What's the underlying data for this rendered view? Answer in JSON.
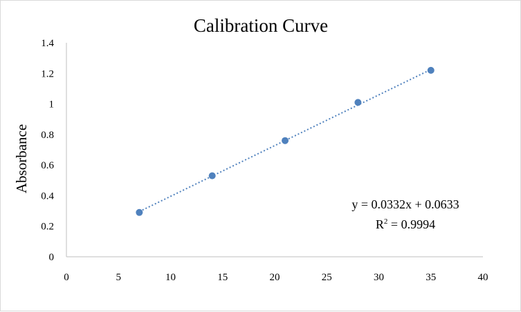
{
  "chart_data": {
    "type": "scatter",
    "title": "Calibration Curve",
    "xlabel": "",
    "ylabel": "Absorbance",
    "xlim": [
      0,
      40
    ],
    "ylim": [
      0,
      1.4
    ],
    "x_ticks": [
      "0",
      "5",
      "10",
      "15",
      "20",
      "25",
      "30",
      "35",
      "40"
    ],
    "y_ticks": [
      "0",
      "0.2",
      "0.4",
      "0.6",
      "0.8",
      "1",
      "1.2",
      "1.4"
    ],
    "grid": false,
    "series": [
      {
        "x": [
          7,
          14,
          21,
          28,
          35
        ],
        "y": [
          0.29,
          0.53,
          0.76,
          1.01,
          1.22
        ],
        "color": "#4f81bd"
      }
    ],
    "trendline": {
      "type": "linear",
      "slope": 0.0332,
      "intercept": 0.0633,
      "x_range": [
        7,
        35
      ],
      "style": "dotted",
      "color": "#4f81bd"
    },
    "annotations": {
      "equation": "y = 0.0332x + 0.0633",
      "r2_prefix": "R",
      "r2_sup": "2",
      "r2_value": " = 0.9994"
    }
  }
}
